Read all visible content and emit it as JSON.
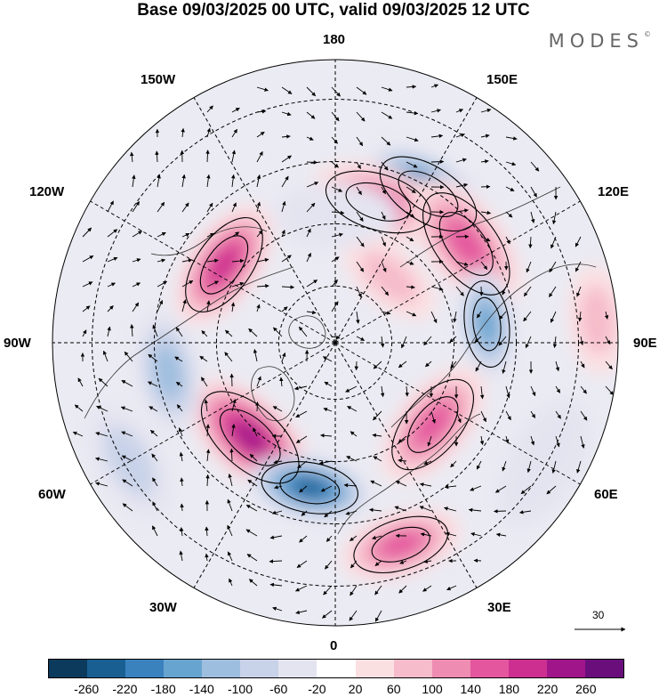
{
  "title": "Base 09/03/2025 00 UTC, valid 09/03/2025 12 UTC",
  "brand": "MODES",
  "brand_mark": "©",
  "longitude_labels": {
    "top": "180",
    "bottom": "0",
    "left": "90W",
    "right": "90E",
    "nw1": "150W",
    "nw2": "120W",
    "ne1": "150E",
    "ne2": "120E",
    "sw1": "60W",
    "sw2": "30W",
    "se1": "60E",
    "se2": "30E"
  },
  "vector_reference": "30",
  "colorbar": {
    "colors": [
      "#0b3a5c",
      "#1a5f92",
      "#3a82bd",
      "#68a4d0",
      "#9ebedf",
      "#c8d2e8",
      "#e4e4f0",
      "#ffffff",
      "#fbe0e2",
      "#f6bccb",
      "#ee8cb1",
      "#e4569e",
      "#cc2f8f",
      "#a0158a",
      "#6a0e7c"
    ],
    "tick_labels": [
      "-260",
      "-220",
      "-180",
      "-140",
      "-100",
      "-60",
      "-20",
      "20",
      "60",
      "100",
      "140",
      "180",
      "220",
      "260"
    ]
  },
  "anomalies": [
    {
      "lon": 148,
      "r": 0.62,
      "v": -260,
      "size": 1.0
    },
    {
      "lon": 163,
      "r": 0.52,
      "v": 170,
      "size": 1.0
    },
    {
      "lon": 127,
      "r": 0.58,
      "v": 150,
      "size": 1.1
    },
    {
      "lon": -125,
      "r": 0.48,
      "v": 210,
      "size": 1.0
    },
    {
      "lon": -42,
      "r": 0.45,
      "v": 230,
      "size": 1.1
    },
    {
      "lon": -10,
      "r": 0.52,
      "v": -230,
      "size": 0.9
    },
    {
      "lon": 18,
      "r": 0.75,
      "v": 160,
      "size": 0.9
    },
    {
      "lon": 50,
      "r": 0.45,
      "v": 150,
      "size": 1.0
    },
    {
      "lon": 97,
      "r": 0.54,
      "v": -170,
      "size": 0.8
    },
    {
      "lon": -80,
      "r": 0.6,
      "v": -120,
      "size": 0.9
    },
    {
      "lon": 140,
      "r": 0.3,
      "v": 60,
      "size": 0.8
    },
    {
      "lon": 95,
      "r": 0.93,
      "v": 80,
      "size": 0.8
    },
    {
      "lon": -180,
      "r": 0.45,
      "v": -50,
      "size": 0.9
    },
    {
      "lon": -60,
      "r": 0.84,
      "v": -60,
      "size": 0.9
    },
    {
      "lon": 60,
      "r": 0.85,
      "v": -50,
      "size": 1.0
    }
  ]
}
